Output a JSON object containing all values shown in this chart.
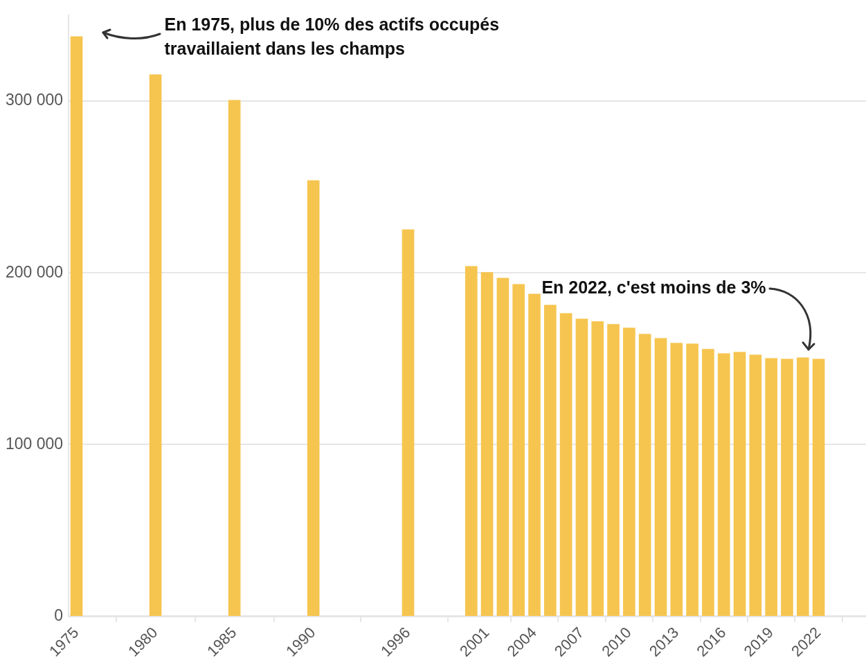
{
  "chart_data": {
    "type": "bar",
    "color": "#f6c54f",
    "x": [
      1975,
      1980,
      1985,
      1990,
      1996,
      2000,
      2001,
      2002,
      2003,
      2004,
      2005,
      2006,
      2007,
      2008,
      2009,
      2010,
      2011,
      2012,
      2013,
      2014,
      2015,
      2016,
      2017,
      2018,
      2019,
      2020,
      2021,
      2022
    ],
    "values": [
      337500,
      315300,
      300400,
      253700,
      225100,
      203800,
      200200,
      196900,
      193300,
      187700,
      181200,
      176400,
      173200,
      171600,
      170000,
      167900,
      164300,
      161900,
      159100,
      158700,
      155500,
      153000,
      153800,
      152200,
      150200,
      149800,
      150600,
      149800
    ],
    "xlim": [
      1974.5,
      2025
    ],
    "xticks": [
      1975,
      1980,
      1985,
      1990,
      1996,
      2001,
      2004,
      2007,
      2010,
      2013,
      2016,
      2019,
      2022
    ],
    "ylim": [
      0,
      350000
    ],
    "yticks": [
      {
        "value": 0,
        "label": "0"
      },
      {
        "value": 100000,
        "label": "100 000"
      },
      {
        "value": 200000,
        "label": "200 000"
      },
      {
        "value": 300000,
        "label": "300 000"
      }
    ],
    "grid": "y",
    "legend": false,
    "annotations": [
      "En 1975, plus de 10% des actifs occupés travaillaient dans les champs",
      "En 2022, c'est moins de 3%"
    ]
  }
}
